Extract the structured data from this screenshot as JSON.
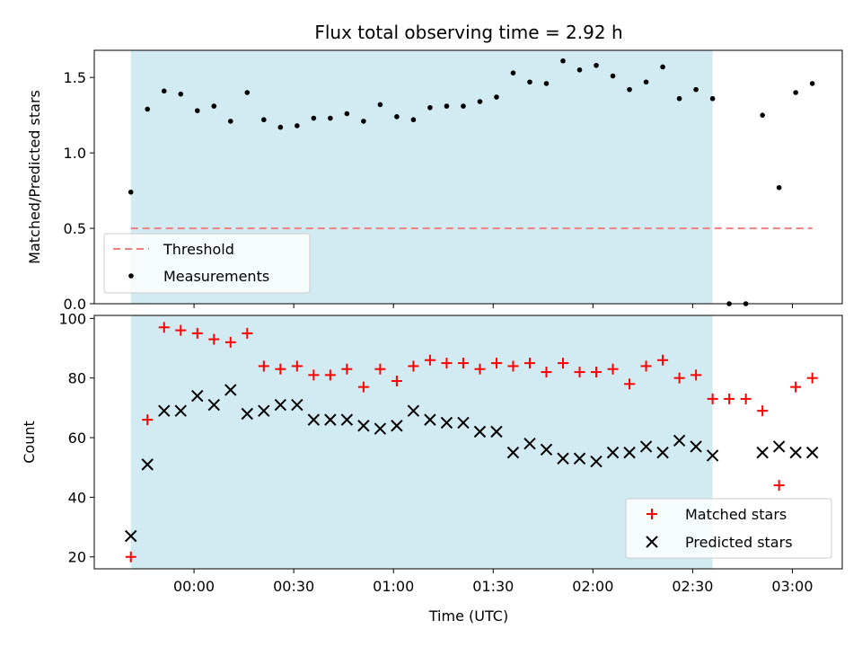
{
  "chart_data": [
    {
      "type": "scatter",
      "title": "Flux total observing time = 2.92 h",
      "xlabel": "",
      "ylabel": "Matched/Predicted stars",
      "ylim": [
        0,
        1.68
      ],
      "yticks": [
        0.0,
        0.5,
        1.0,
        1.5
      ],
      "ytick_labels": [
        "0.0",
        "0.5",
        "1.0",
        "1.5"
      ],
      "xlim_minutes": [
        -30,
        195
      ],
      "shaded_span_minutes": [
        -19,
        156
      ],
      "shaded_color": "#add8e6",
      "legend_position": "lower-left",
      "threshold": {
        "name": "Threshold",
        "y": 0.5,
        "x_range_minutes": [
          -19,
          186
        ],
        "color": "#f08080",
        "style": "dashed"
      },
      "series": [
        {
          "name": "Measurements",
          "color": "#000000",
          "marker": "dot",
          "x_minutes": [
            -19,
            -14,
            -9,
            -4,
            1,
            6,
            11,
            16,
            21,
            26,
            31,
            36,
            41,
            46,
            51,
            56,
            61,
            66,
            71,
            76,
            81,
            86,
            91,
            96,
            101,
            106,
            111,
            116,
            121,
            126,
            131,
            136,
            141,
            146,
            151,
            156,
            161,
            166,
            171,
            176,
            181,
            186
          ],
          "y": [
            0.74,
            1.29,
            1.41,
            1.39,
            1.28,
            1.31,
            1.21,
            1.4,
            1.22,
            1.17,
            1.18,
            1.23,
            1.23,
            1.26,
            1.21,
            1.32,
            1.24,
            1.22,
            1.3,
            1.31,
            1.31,
            1.34,
            1.37,
            1.53,
            1.47,
            1.46,
            1.61,
            1.55,
            1.58,
            1.51,
            1.42,
            1.47,
            1.57,
            1.36,
            1.42,
            1.36,
            0.0,
            0.0,
            1.25,
            0.77,
            1.4,
            1.46
          ]
        }
      ]
    },
    {
      "type": "scatter",
      "title": "",
      "xlabel": "Time (UTC)",
      "ylabel": "Count",
      "ylim": [
        16,
        101
      ],
      "yticks": [
        20,
        40,
        60,
        80,
        100
      ],
      "ytick_labels": [
        "20",
        "40",
        "60",
        "80",
        "100"
      ],
      "xlim_minutes": [
        -30,
        195
      ],
      "xticks_minutes": [
        0,
        30,
        60,
        90,
        120,
        150,
        180
      ],
      "xtick_labels": [
        "00:00",
        "00:30",
        "01:00",
        "01:30",
        "02:00",
        "02:30",
        "03:00"
      ],
      "shaded_span_minutes": [
        -19,
        156
      ],
      "shaded_color": "#add8e6",
      "legend_position": "lower-right",
      "series": [
        {
          "name": "Matched stars",
          "color": "#ff0000",
          "marker": "plus",
          "x_minutes": [
            -19,
            -14,
            -9,
            -4,
            1,
            6,
            11,
            16,
            21,
            26,
            31,
            36,
            41,
            46,
            51,
            56,
            61,
            66,
            71,
            76,
            81,
            86,
            91,
            96,
            101,
            106,
            111,
            116,
            121,
            126,
            131,
            136,
            141,
            146,
            151,
            156,
            161,
            166,
            171,
            176,
            181,
            186
          ],
          "y": [
            20,
            66,
            97,
            96,
            95,
            93,
            92,
            95,
            84,
            83,
            84,
            81,
            81,
            83,
            77,
            83,
            79,
            84,
            86,
            85,
            85,
            83,
            85,
            84,
            85,
            82,
            85,
            82,
            82,
            83,
            78,
            84,
            86,
            80,
            81,
            73,
            73,
            73,
            69,
            44,
            77,
            80
          ]
        },
        {
          "name": "Predicted stars",
          "color": "#000000",
          "marker": "x",
          "x_minutes": [
            -19,
            -14,
            -9,
            -4,
            1,
            6,
            11,
            16,
            21,
            26,
            31,
            36,
            41,
            46,
            51,
            56,
            61,
            66,
            71,
            76,
            81,
            86,
            91,
            96,
            101,
            106,
            111,
            116,
            121,
            126,
            131,
            136,
            141,
            146,
            151,
            156,
            171,
            176,
            181,
            186
          ],
          "y": [
            27,
            51,
            69,
            69,
            74,
            71,
            76,
            68,
            69,
            71,
            71,
            66,
            66,
            66,
            64,
            63,
            64,
            69,
            66,
            65,
            65,
            62,
            62,
            55,
            58,
            56,
            53,
            53,
            52,
            55,
            55,
            57,
            55,
            59,
            57,
            54,
            55,
            57,
            55,
            55
          ]
        }
      ]
    }
  ]
}
